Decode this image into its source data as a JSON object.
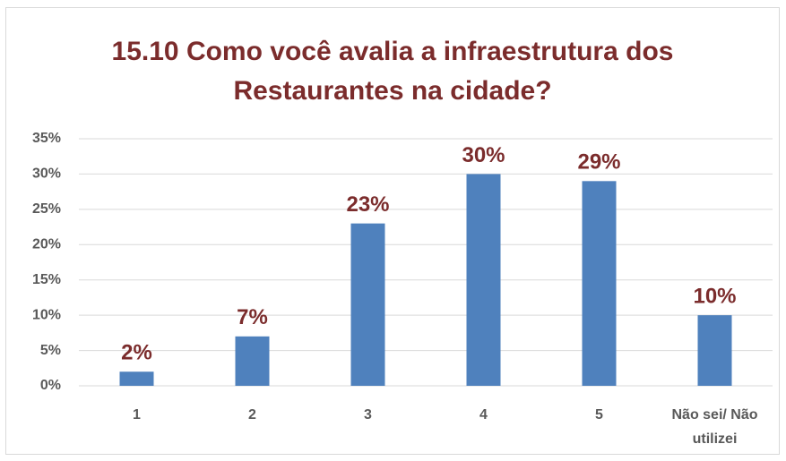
{
  "chart_data": {
    "type": "bar",
    "title": "15.10 Como você avalia a infraestrutura dos Restaurantes na cidade?",
    "categories": [
      "1",
      "2",
      "3",
      "4",
      "5",
      "Não sei/ Não utilizei"
    ],
    "values": [
      2,
      7,
      23,
      30,
      29,
      10
    ],
    "value_labels": [
      "2%",
      "7%",
      "23%",
      "30%",
      "29%",
      "10%"
    ],
    "color": "#4f81bd",
    "ylim": [
      0,
      35
    ],
    "yticks": [
      {
        "value": 0,
        "label": "0%"
      },
      {
        "value": 5,
        "label": "5%"
      },
      {
        "value": 10,
        "label": "10%"
      },
      {
        "value": 15,
        "label": "15%"
      },
      {
        "value": 20,
        "label": "20%"
      },
      {
        "value": 25,
        "label": "25%"
      },
      {
        "value": 30,
        "label": "30%"
      },
      {
        "value": 35,
        "label": "35%"
      }
    ],
    "grid": true
  }
}
